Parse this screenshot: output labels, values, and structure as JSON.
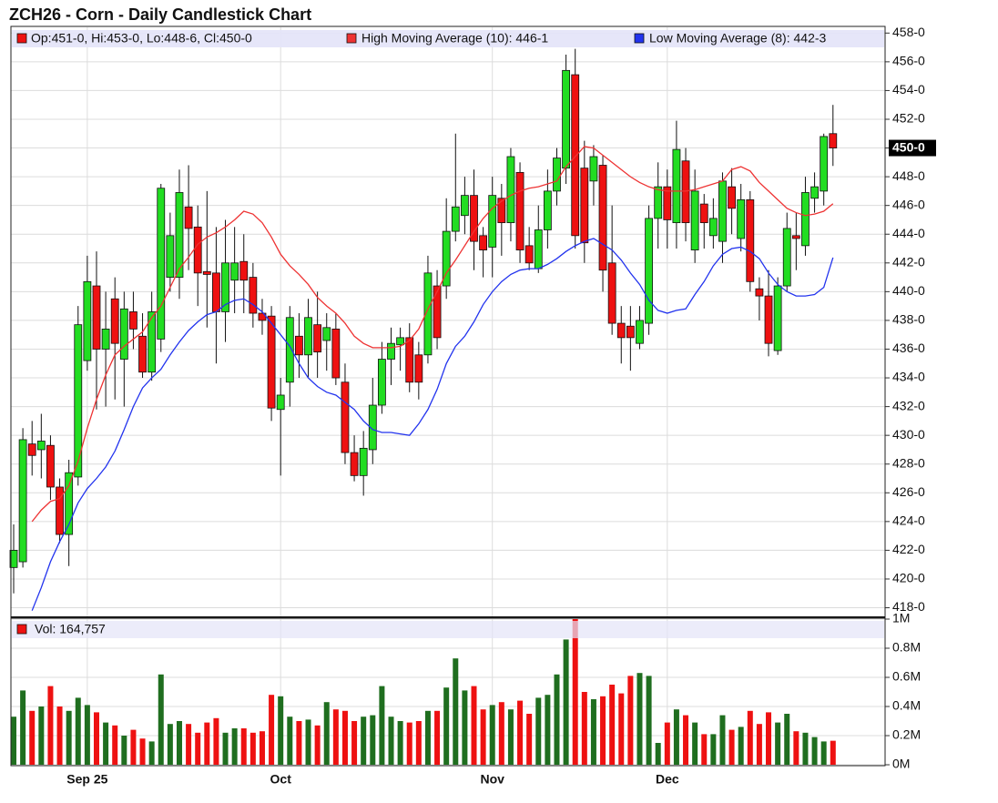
{
  "chart_data": [
    {
      "type": "candlestick",
      "title": "ZCH26 - Corn - Daily Candlestick Chart",
      "ohlc_label": "Op:451-0, Hi:453-0, Lo:448-6, Cl:450-0",
      "up_color": "#22dd22",
      "down_color": "#ee1111",
      "open": [
        420.8,
        421.2,
        429.4,
        429,
        429.3,
        426.4,
        423.1,
        427.1,
        435.2,
        440.4,
        436,
        439.5,
        435.3,
        438.6,
        436.9,
        434.4,
        436.7,
        441,
        441,
        445.9,
        444.5,
        441.4,
        441.3,
        438.6,
        440.8,
        442.1,
        441,
        438.5,
        438.3,
        431.8,
        433.7,
        436.9,
        435.6,
        437.7,
        436.6,
        437.4,
        433.7,
        428.8,
        427.2,
        429,
        432.1,
        435.3,
        436.3,
        436.8,
        435.6,
        435.6,
        440.4,
        440.4,
        444.2,
        445.3,
        446.7,
        443.9,
        443.1,
        446.5,
        444.8,
        448.3,
        443.2,
        441.6,
        444.3,
        447,
        448.6,
        455.1,
        448.6,
        447.7,
        448.8,
        442,
        437.8,
        437.6,
        436.4,
        437.8,
        445.1,
        447.3,
        444.8,
        449.1,
        442.9,
        446.1,
        443.9,
        443.5,
        447.3,
        443.7,
        446.4,
        440.2,
        439.7,
        435.9,
        440.4,
        443.9,
        443.2,
        446.5,
        447,
        451
      ],
      "high": [
        423.8,
        430.5,
        431,
        431.5,
        430,
        427,
        428.3,
        439,
        442.5,
        442.8,
        440,
        441,
        440,
        440,
        438.5,
        440,
        447.5,
        445.5,
        448.5,
        448.8,
        446,
        447,
        444.5,
        445,
        444.5,
        444,
        442,
        439.5,
        439,
        434,
        439,
        438.5,
        439.5,
        440,
        438.5,
        438.5,
        435,
        430,
        430.3,
        434,
        436.5,
        437.5,
        437.5,
        437.8,
        436.5,
        442.5,
        441.5,
        446.5,
        451,
        448,
        448.5,
        444.5,
        448,
        447.5,
        450,
        449,
        444.5,
        446,
        448.5,
        450,
        456.5,
        456.9,
        450.5,
        450.2,
        449.5,
        446,
        439,
        439,
        439,
        446,
        449,
        448.5,
        451.9,
        450,
        448.5,
        446.8,
        446.5,
        448.3,
        448.6,
        447.5,
        447,
        441,
        441.5,
        441,
        445.5,
        445.5,
        448,
        448.3,
        451,
        453
      ],
      "low": [
        419,
        420.8,
        427.2,
        427,
        425.5,
        422.5,
        420.9,
        426.5,
        434.5,
        431.8,
        432,
        432.5,
        432,
        436,
        434,
        433.8,
        435.8,
        440,
        439.5,
        441.5,
        439,
        437.5,
        435,
        436.5,
        438.5,
        438.5,
        437.5,
        437,
        431,
        427.2,
        432,
        434,
        434,
        434,
        434.5,
        433.5,
        428,
        426.8,
        425.8,
        428,
        431.5,
        433.5,
        434.5,
        433,
        432.5,
        435,
        436,
        439.5,
        443.5,
        444,
        441.5,
        441,
        441,
        442.5,
        443.5,
        442,
        441.5,
        441.3,
        443,
        446,
        447.5,
        443,
        442,
        446,
        440,
        437,
        435,
        434.5,
        436,
        437,
        443,
        443,
        443,
        443.5,
        442,
        443,
        443,
        442,
        444,
        442.8,
        440,
        438,
        435.5,
        435.6,
        440,
        441.5,
        442.5,
        445.5,
        446,
        448.75
      ],
      "close": [
        422,
        429.7,
        428.6,
        429.6,
        426.4,
        423.1,
        427.4,
        437.7,
        440.7,
        436,
        437.4,
        436.4,
        438.8,
        437.4,
        434.4,
        438.6,
        447.2,
        443.9,
        446.9,
        444.4,
        441.3,
        441.2,
        438.6,
        442,
        442,
        440.8,
        438.5,
        438,
        431.9,
        432.8,
        438.2,
        435.6,
        438.2,
        435.8,
        437.5,
        434,
        428.8,
        427.2,
        429.1,
        432.1,
        435.3,
        436.4,
        436.8,
        433.7,
        433.7,
        441.3,
        436.8,
        444.2,
        445.9,
        446.7,
        443.5,
        442.9,
        446.7,
        444.8,
        449.4,
        442.9,
        442,
        444.3,
        447,
        449.3,
        455.4,
        443.9,
        443.4,
        449.4,
        441.5,
        437.8,
        436.8,
        436.8,
        438,
        445.1,
        447.3,
        445,
        449.9,
        444.8,
        447,
        444.8,
        445.1,
        447.7,
        445.8,
        446.4,
        440.7,
        439.7,
        436.4,
        440.4,
        444.4,
        443.7,
        446.9,
        447.3,
        450.8,
        450
      ],
      "series": [
        {
          "name": "High Moving Average (10): 446-1",
          "color": "#ee3333",
          "values": [
            null,
            null,
            424.0,
            424.8,
            425.4,
            425.6,
            426.5,
            428.2,
            430.5,
            432.5,
            434.2,
            435.6,
            436.2,
            436.7,
            437.2,
            438.2,
            439.0,
            440.3,
            441.6,
            442.4,
            443.3,
            443.8,
            444.1,
            444.5,
            445.0,
            445.6,
            445.4,
            444.8,
            443.8,
            442.6,
            441.8,
            441.2,
            440.5,
            439.6,
            439.0,
            438.5,
            437.8,
            436.9,
            436.4,
            436.1,
            436.1,
            436.1,
            436.2,
            436.6,
            437.4,
            438.8,
            440.0,
            441.3,
            442.2,
            443.2,
            444.2,
            445.1,
            445.8,
            446.3,
            446.7,
            447.0,
            447.2,
            447.3,
            447.5,
            447.7,
            448.7,
            449.4,
            450.1,
            450.0,
            449.5,
            449.0,
            448.5,
            448.0,
            447.6,
            447.3,
            447.1,
            447.0,
            447.0,
            447.0,
            447.1,
            447.3,
            447.5,
            447.7,
            448.5,
            448.7,
            448.4,
            447.6,
            447.0,
            446.4,
            445.8,
            445.5,
            445.3,
            445.4,
            445.6,
            446.125
          ]
        },
        {
          "name": "Low Moving Average (8): 442-3",
          "color": "#2233ee",
          "values": [
            null,
            null,
            417.8,
            419.4,
            421.2,
            422.6,
            423.8,
            425.3,
            426.3,
            427.0,
            427.8,
            428.9,
            430.4,
            432.0,
            433.3,
            434.0,
            434.6,
            435.6,
            436.5,
            437.3,
            437.9,
            438.4,
            438.6,
            439.1,
            439.4,
            439.5,
            439.1,
            438.6,
            437.8,
            437.0,
            436.2,
            435.0,
            434.0,
            433.4,
            433.0,
            432.8,
            432.3,
            431.8,
            431.0,
            430.4,
            430.2,
            430.2,
            430.1,
            430.0,
            430.8,
            431.8,
            433.2,
            435.0,
            436.2,
            436.9,
            437.9,
            439.1,
            440.0,
            440.7,
            441.2,
            441.5,
            441.6,
            441.6,
            441.9,
            442.3,
            442.8,
            443.2,
            443.5,
            443.7,
            443.3,
            442.9,
            442.2,
            441.3,
            440.5,
            439.4,
            438.7,
            438.5,
            438.7,
            438.8,
            439.8,
            440.7,
            441.8,
            442.6,
            443.0,
            443.1,
            442.8,
            442.3,
            441.3,
            440.5,
            440.0,
            439.7,
            439.7,
            439.8,
            440.3,
            442.375
          ]
        }
      ],
      "last_price": {
        "value": 450,
        "label": "450-0"
      },
      "ylim": [
        417.4,
        458.4
      ],
      "yticks": [
        {
          "value": 418,
          "label": "418-0"
        },
        {
          "value": 420,
          "label": "420-0"
        },
        {
          "value": 422,
          "label": "422-0"
        },
        {
          "value": 424,
          "label": "424-0"
        },
        {
          "value": 426,
          "label": "426-0"
        },
        {
          "value": 428,
          "label": "428-0"
        },
        {
          "value": 430,
          "label": "430-0"
        },
        {
          "value": 432,
          "label": "432-0"
        },
        {
          "value": 434,
          "label": "434-0"
        },
        {
          "value": 436,
          "label": "436-0"
        },
        {
          "value": 438,
          "label": "438-0"
        },
        {
          "value": 440,
          "label": "440-0"
        },
        {
          "value": 442,
          "label": "442-0"
        },
        {
          "value": 444,
          "label": "444-0"
        },
        {
          "value": 446,
          "label": "446-0"
        },
        {
          "value": 448,
          "label": "448-0"
        },
        {
          "value": 450,
          "label": "450-0"
        },
        {
          "value": 452,
          "label": "452-0"
        },
        {
          "value": 454,
          "label": "454-0"
        },
        {
          "value": 456,
          "label": "456-0"
        },
        {
          "value": 458,
          "label": "458-0"
        }
      ],
      "grid": true
    },
    {
      "type": "bar",
      "name": "Vol: 164,757",
      "up_color": "#1f6e1f",
      "down_color": "#ee1111",
      "categories": [
        null,
        null,
        null,
        null,
        null,
        null,
        null,
        null,
        "Sep 25",
        null,
        null,
        null,
        null,
        null,
        null,
        null,
        null,
        null,
        null,
        null,
        null,
        null,
        null,
        null,
        null,
        null,
        null,
        null,
        null,
        "Oct",
        null,
        null,
        null,
        null,
        null,
        null,
        null,
        null,
        null,
        null,
        null,
        null,
        null,
        null,
        null,
        null,
        null,
        null,
        null,
        null,
        null,
        null,
        "Nov",
        null,
        null,
        null,
        null,
        null,
        null,
        null,
        null,
        null,
        null,
        null,
        null,
        null,
        null,
        null,
        null,
        null,
        null,
        "Dec",
        null,
        null,
        null,
        null,
        null,
        null,
        null,
        null,
        null,
        null,
        null,
        null,
        null,
        null,
        null,
        null,
        null,
        null
      ],
      "values": [
        330000,
        510000,
        370000,
        400000,
        540000,
        400000,
        370000,
        460000,
        410000,
        360000,
        290000,
        270000,
        200000,
        240000,
        180000,
        160000,
        620000,
        280000,
        300000,
        280000,
        220000,
        290000,
        320000,
        220000,
        250000,
        250000,
        220000,
        230000,
        480000,
        470000,
        330000,
        300000,
        310000,
        270000,
        430000,
        380000,
        370000,
        300000,
        330000,
        340000,
        540000,
        330000,
        300000,
        290000,
        300000,
        370000,
        370000,
        530000,
        730000,
        510000,
        540000,
        380000,
        410000,
        430000,
        380000,
        440000,
        350000,
        460000,
        480000,
        620000,
        860000,
        1000000,
        500000,
        450000,
        470000,
        550000,
        490000,
        610000,
        630000,
        610000,
        150000,
        290000,
        380000,
        340000,
        290000,
        210000,
        210000,
        340000,
        240000,
        260000,
        370000,
        280000,
        360000,
        290000,
        350000,
        230000,
        220000,
        190000,
        160000,
        164757
      ],
      "ylim": [
        0,
        1000000
      ],
      "yticks": [
        {
          "value": 0,
          "label": "0M"
        },
        {
          "value": 200000,
          "label": "0.2M"
        },
        {
          "value": 400000,
          "label": "0.4M"
        },
        {
          "value": 600000,
          "label": "0.6M"
        },
        {
          "value": 800000,
          "label": "0.8M"
        },
        {
          "value": 1000000,
          "label": "1M"
        }
      ],
      "grid": true
    }
  ]
}
